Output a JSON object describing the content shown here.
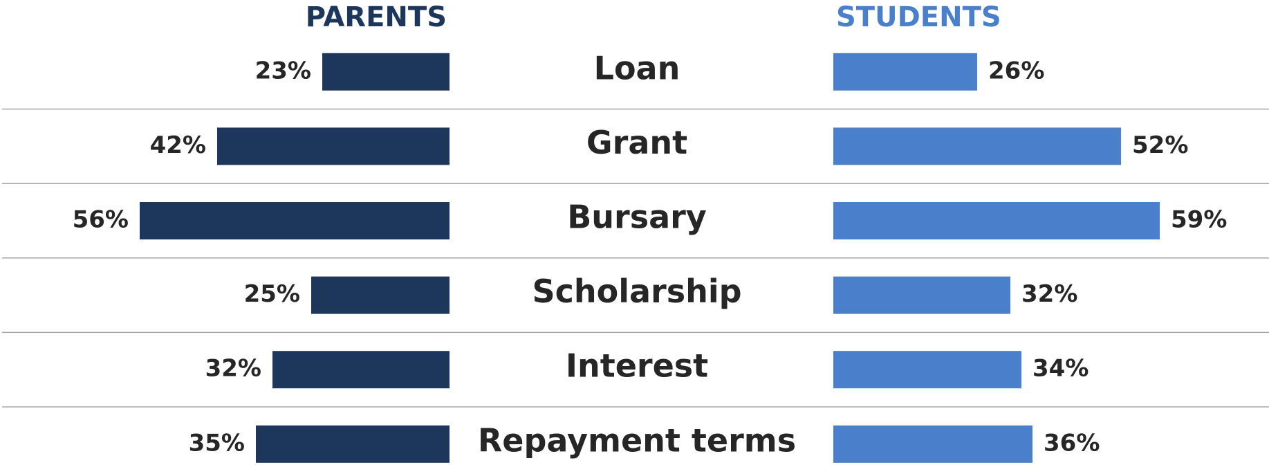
{
  "chart_data": {
    "type": "bar",
    "categories": [
      "Loan",
      "Grant",
      "Bursary",
      "Scholarship",
      "Interest",
      "Repayment terms"
    ],
    "series": [
      {
        "name": "PARENTS",
        "color": "#1c365c",
        "values": [
          23,
          42,
          56,
          25,
          32,
          35
        ],
        "value_labels": [
          "23%",
          "42%",
          "56%",
          "25%",
          "32%",
          "35%"
        ]
      },
      {
        "name": "STUDENTS",
        "color": "#4a7fcb",
        "values": [
          26,
          52,
          59,
          32,
          34,
          36
        ],
        "value_labels": [
          "26%",
          "52%",
          "59%",
          "32%",
          "34%",
          "36%"
        ]
      }
    ]
  }
}
